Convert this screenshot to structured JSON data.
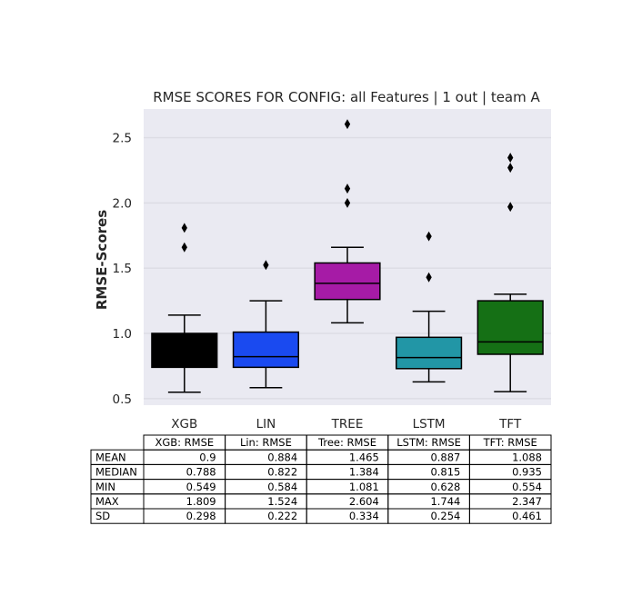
{
  "chart_data": {
    "type": "box",
    "title": "RMSE SCORES FOR CONFIG: all Features | 1 out | team A",
    "xlabel": "",
    "ylabel": "RMSE-Scores",
    "ylim": [
      0.45,
      2.72
    ],
    "yticks": [
      0.5,
      1.0,
      1.5,
      2.0,
      2.5
    ],
    "ytick_labels": [
      "0.5",
      "1.0",
      "1.5",
      "2.0",
      "2.5"
    ],
    "grid": true,
    "categories": [
      "XGB",
      "LIN",
      "TREE",
      "LSTM",
      "TFT"
    ],
    "boxes": [
      {
        "name": "XGB",
        "color": "#000000",
        "whislo": 0.549,
        "q1": 0.74,
        "med": 0.788,
        "q3": 1.0,
        "whishi": 1.14,
        "fliers": [
          1.66,
          1.809
        ]
      },
      {
        "name": "LIN",
        "color": "#1a4af0",
        "whislo": 0.584,
        "q1": 0.74,
        "med": 0.822,
        "q3": 1.01,
        "whishi": 1.25,
        "fliers": [
          1.524
        ]
      },
      {
        "name": "TREE",
        "color": "#a61ba6",
        "whislo": 1.081,
        "q1": 1.26,
        "med": 1.384,
        "q3": 1.54,
        "whishi": 1.66,
        "fliers": [
          2.0,
          2.11,
          2.604
        ]
      },
      {
        "name": "LSTM",
        "color": "#2296a6",
        "whislo": 0.628,
        "q1": 0.73,
        "med": 0.815,
        "q3": 0.97,
        "whishi": 1.17,
        "fliers": [
          1.43,
          1.744
        ]
      },
      {
        "name": "TFT",
        "color": "#157015",
        "whislo": 0.554,
        "q1": 0.84,
        "med": 0.935,
        "q3": 1.25,
        "whishi": 1.3,
        "fliers": [
          1.97,
          2.27,
          2.347
        ]
      }
    ],
    "table": {
      "col_headers": [
        "XGB: RMSE",
        "Lin: RMSE",
        "Tree: RMSE",
        "LSTM: RMSE",
        "TFT: RMSE"
      ],
      "rows": [
        {
          "label": "MEAN",
          "values": [
            "0.9",
            "0.884",
            "1.465",
            "0.887",
            "1.088"
          ]
        },
        {
          "label": "MEDIAN",
          "values": [
            "0.788",
            "0.822",
            "1.384",
            "0.815",
            "0.935"
          ]
        },
        {
          "label": "MIN",
          "values": [
            "0.549",
            "0.584",
            "1.081",
            "0.628",
            "0.554"
          ]
        },
        {
          "label": "MAX",
          "values": [
            "1.809",
            "1.524",
            "2.604",
            "1.744",
            "2.347"
          ]
        },
        {
          "label": "SD",
          "values": [
            "0.298",
            "0.222",
            "0.334",
            "0.254",
            "0.461"
          ]
        }
      ]
    }
  }
}
